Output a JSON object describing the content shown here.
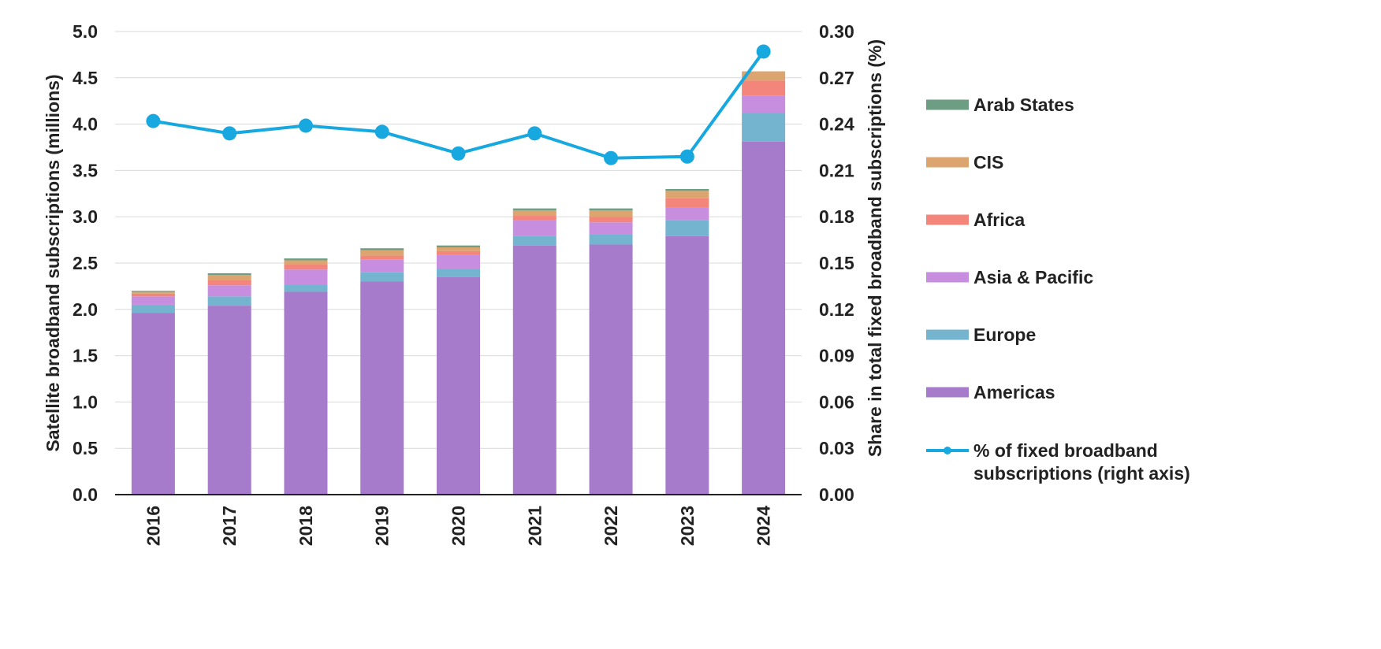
{
  "chart_data": {
    "type": "bar",
    "categories": [
      "2016",
      "2017",
      "2018",
      "2019",
      "2020",
      "2021",
      "2022",
      "2023",
      "2024"
    ],
    "series": [
      {
        "name": "Americas",
        "color": "#a67bcb",
        "values": [
          1.96,
          2.04,
          2.19,
          2.3,
          2.35,
          2.69,
          2.7,
          2.79,
          3.81
        ]
      },
      {
        "name": "Europe",
        "color": "#74b4cf",
        "values": [
          0.09,
          0.1,
          0.08,
          0.1,
          0.09,
          0.1,
          0.11,
          0.17,
          0.31
        ]
      },
      {
        "name": "Asia & Pacific",
        "color": "#c78ee0",
        "values": [
          0.09,
          0.12,
          0.16,
          0.14,
          0.15,
          0.17,
          0.13,
          0.14,
          0.19
        ]
      },
      {
        "name": "Africa",
        "color": "#f4857a",
        "values": [
          0.03,
          0.06,
          0.06,
          0.04,
          0.04,
          0.05,
          0.06,
          0.1,
          0.16
        ]
      },
      {
        "name": "CIS",
        "color": "#dca46e",
        "values": [
          0.02,
          0.05,
          0.04,
          0.06,
          0.04,
          0.06,
          0.07,
          0.08,
          0.1
        ]
      },
      {
        "name": "Arab States",
        "color": "#6d9e84",
        "values": [
          0.01,
          0.02,
          0.02,
          0.02,
          0.02,
          0.02,
          0.02,
          0.02,
          0.0
        ]
      }
    ],
    "line_series": {
      "name": "% of fixed broadband subscriptions (right axis)",
      "color": "#16a8df",
      "axis": "right",
      "values": [
        0.242,
        0.234,
        0.239,
        0.235,
        0.221,
        0.234,
        0.218,
        0.219,
        0.287
      ]
    },
    "title": "",
    "xlabel": "",
    "ylabel": "Satellite broadband subscriptions (millions)",
    "y2label": "Share in total fixed broadband subscriptions (%)",
    "ylim": [
      0,
      5.0
    ],
    "y2lim": [
      0,
      0.3
    ],
    "yticks": [
      "0.0",
      "0.5",
      "1.0",
      "1.5",
      "2.0",
      "2.5",
      "3.0",
      "3.5",
      "4.0",
      "4.5",
      "5.0"
    ],
    "y2ticks": [
      "0.00",
      "0.03",
      "0.06",
      "0.09",
      "0.12",
      "0.15",
      "0.18",
      "0.21",
      "0.24",
      "0.27",
      "0.30"
    ],
    "grid": true,
    "legend_position": "right",
    "legend": [
      {
        "label": "Arab States",
        "kind": "bar",
        "color": "#6d9e84"
      },
      {
        "label": "CIS",
        "kind": "bar",
        "color": "#dca46e"
      },
      {
        "label": "Africa",
        "kind": "bar",
        "color": "#f4857a"
      },
      {
        "label": "Asia & Pacific",
        "kind": "bar",
        "color": "#c78ee0"
      },
      {
        "label": "Europe",
        "kind": "bar",
        "color": "#74b4cf"
      },
      {
        "label": "Americas",
        "kind": "bar",
        "color": "#a67bcb"
      },
      {
        "label": "% of fixed broadband",
        "label2": "subscriptions (right axis)",
        "kind": "line",
        "color": "#16a8df"
      }
    ]
  }
}
